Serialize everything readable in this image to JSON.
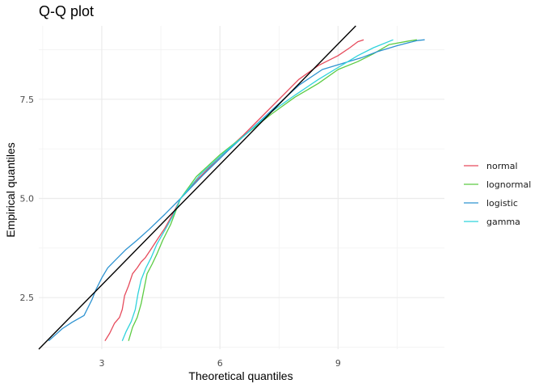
{
  "chart_data": {
    "type": "line",
    "title": "Q-Q plot",
    "xlabel": "Theoretical quantiles",
    "ylabel": "Empirical quantiles",
    "xlim": [
      1.4,
      11.7
    ],
    "ylim": [
      1.2,
      9.35
    ],
    "x_ticks": [
      3,
      6,
      9
    ],
    "x_tick_labels": [
      "3",
      "6",
      "9"
    ],
    "y_ticks": [
      2.5,
      5.0,
      7.5
    ],
    "y_tick_labels": [
      "2.5",
      "5.0",
      "7.5"
    ],
    "x_minor_ticks": [
      1.5,
      4.5,
      7.5,
      10.5
    ],
    "y_minor_ticks": [
      1.25,
      3.75,
      6.25,
      8.75
    ],
    "grid": true,
    "legend_position": "right",
    "reference_line": {
      "color": "#000000",
      "points": [
        [
          1.4,
          1.2
        ],
        [
          9.45,
          9.35
        ]
      ]
    },
    "series": [
      {
        "name": "normal",
        "color": "#E64B5C",
        "points": [
          [
            3.08,
            1.41
          ],
          [
            3.2,
            1.6
          ],
          [
            3.32,
            1.85
          ],
          [
            3.45,
            2.0
          ],
          [
            3.52,
            2.2
          ],
          [
            3.58,
            2.55
          ],
          [
            3.68,
            2.8
          ],
          [
            3.78,
            3.1
          ],
          [
            3.9,
            3.25
          ],
          [
            4.0,
            3.4
          ],
          [
            4.1,
            3.5
          ],
          [
            4.25,
            3.72
          ],
          [
            4.4,
            3.95
          ],
          [
            4.6,
            4.25
          ],
          [
            4.8,
            4.6
          ],
          [
            5.0,
            5.0
          ],
          [
            5.4,
            5.45
          ],
          [
            6.0,
            6.05
          ],
          [
            6.6,
            6.6
          ],
          [
            7.2,
            7.2
          ],
          [
            7.6,
            7.6
          ],
          [
            8.0,
            8.0
          ],
          [
            8.5,
            8.35
          ],
          [
            9.0,
            8.6
          ],
          [
            9.3,
            8.8
          ],
          [
            9.5,
            8.95
          ],
          [
            9.65,
            9.0
          ]
        ]
      },
      {
        "name": "lognormal",
        "color": "#5CCB43",
        "points": [
          [
            3.68,
            1.41
          ],
          [
            3.78,
            1.75
          ],
          [
            3.9,
            2.0
          ],
          [
            4.0,
            2.35
          ],
          [
            4.08,
            2.75
          ],
          [
            4.15,
            3.1
          ],
          [
            4.28,
            3.35
          ],
          [
            4.4,
            3.6
          ],
          [
            4.55,
            3.95
          ],
          [
            4.75,
            4.35
          ],
          [
            5.0,
            5.0
          ],
          [
            5.4,
            5.55
          ],
          [
            6.0,
            6.1
          ],
          [
            6.7,
            6.65
          ],
          [
            7.3,
            7.12
          ],
          [
            7.9,
            7.55
          ],
          [
            8.5,
            7.9
          ],
          [
            9.0,
            8.25
          ],
          [
            9.5,
            8.45
          ],
          [
            9.9,
            8.65
          ],
          [
            10.3,
            8.88
          ],
          [
            10.8,
            8.97
          ],
          [
            11.0,
            9.0
          ]
        ]
      },
      {
        "name": "logistic",
        "color": "#2E93D1",
        "points": [
          [
            1.65,
            1.41
          ],
          [
            2.0,
            1.72
          ],
          [
            2.25,
            1.88
          ],
          [
            2.55,
            2.05
          ],
          [
            2.75,
            2.45
          ],
          [
            2.85,
            2.7
          ],
          [
            3.0,
            3.0
          ],
          [
            3.15,
            3.25
          ],
          [
            3.35,
            3.45
          ],
          [
            3.6,
            3.7
          ],
          [
            3.9,
            3.95
          ],
          [
            4.2,
            4.22
          ],
          [
            4.6,
            4.6
          ],
          [
            5.0,
            5.0
          ],
          [
            5.6,
            5.62
          ],
          [
            6.2,
            6.2
          ],
          [
            6.8,
            6.75
          ],
          [
            7.4,
            7.3
          ],
          [
            8.0,
            7.85
          ],
          [
            8.6,
            8.25
          ],
          [
            9.1,
            8.4
          ],
          [
            9.6,
            8.55
          ],
          [
            10.0,
            8.7
          ],
          [
            10.5,
            8.85
          ],
          [
            11.0,
            8.98
          ],
          [
            11.2,
            9.0
          ]
        ]
      },
      {
        "name": "gamma",
        "color": "#2FD3DC",
        "points": [
          [
            3.52,
            1.41
          ],
          [
            3.62,
            1.65
          ],
          [
            3.75,
            1.9
          ],
          [
            3.85,
            2.2
          ],
          [
            3.92,
            2.6
          ],
          [
            4.0,
            2.95
          ],
          [
            4.12,
            3.25
          ],
          [
            4.25,
            3.5
          ],
          [
            4.4,
            3.85
          ],
          [
            4.6,
            4.2
          ],
          [
            4.8,
            4.55
          ],
          [
            5.0,
            5.0
          ],
          [
            5.5,
            5.6
          ],
          [
            6.1,
            6.15
          ],
          [
            6.7,
            6.65
          ],
          [
            7.3,
            7.18
          ],
          [
            7.9,
            7.6
          ],
          [
            8.5,
            8.0
          ],
          [
            9.0,
            8.3
          ],
          [
            9.5,
            8.6
          ],
          [
            9.9,
            8.8
          ],
          [
            10.4,
            9.0
          ]
        ]
      }
    ]
  }
}
